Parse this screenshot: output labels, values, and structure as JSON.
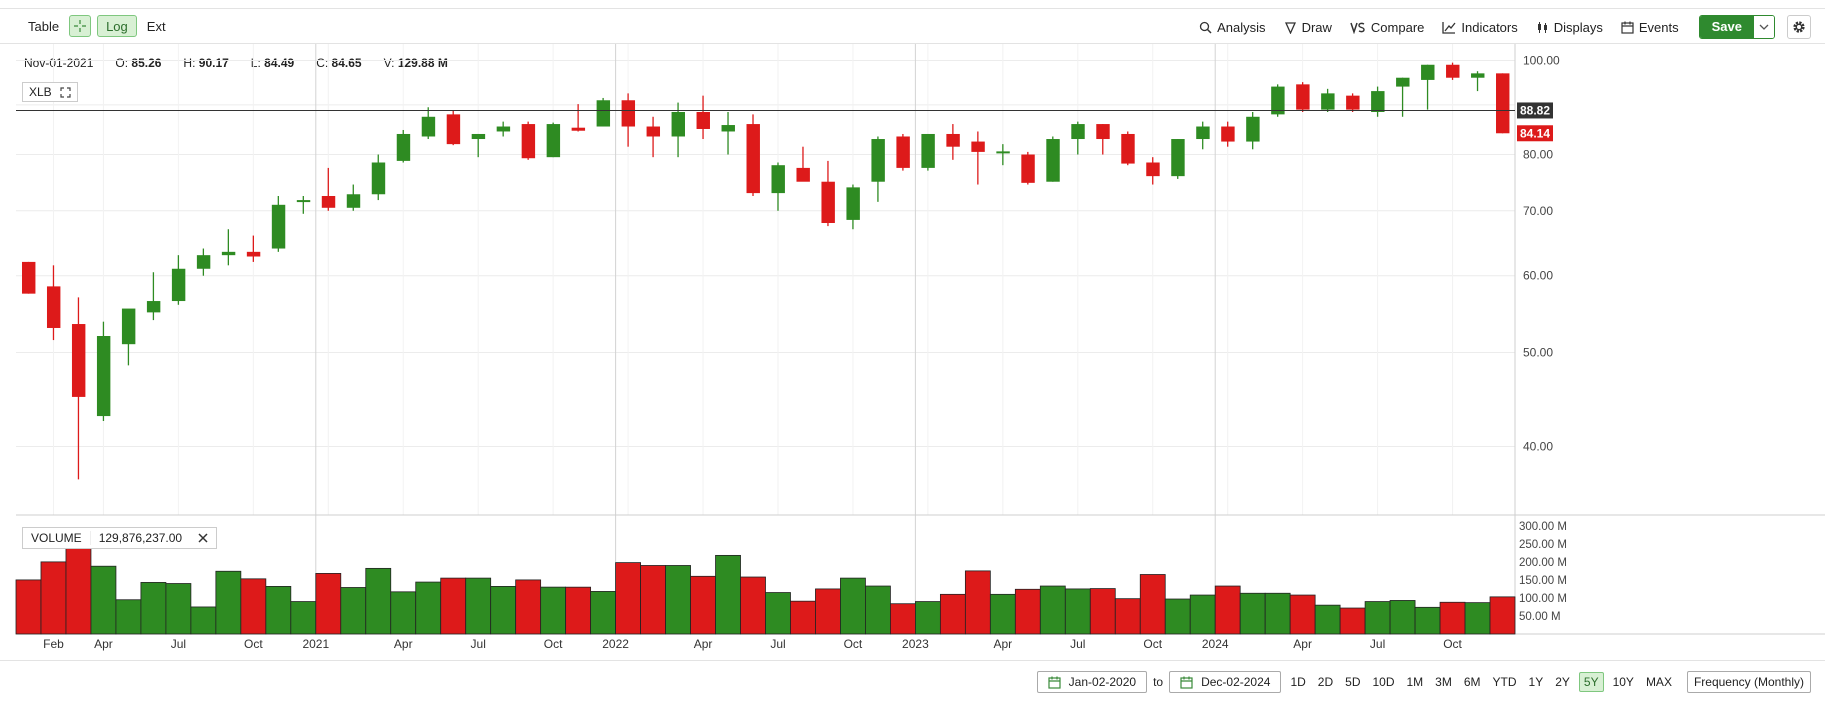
{
  "toolbar": {
    "table_label": "Table",
    "log_label": "Log",
    "ext_label": "Ext",
    "analysis_label": "Analysis",
    "draw_label": "Draw",
    "compare_label": "Compare",
    "indicators_label": "Indicators",
    "displays_label": "Displays",
    "events_label": "Events",
    "save_label": "Save"
  },
  "ohlc": {
    "date": "Nov-01-2021",
    "o_label": "O:",
    "o": "85.26",
    "h_label": "H:",
    "h": "90.17",
    "l_label": "L:",
    "l": "84.49",
    "c_label": "C:",
    "c": "84.65",
    "v_label": "V:",
    "v": "129.88 M"
  },
  "ticker": "XLB",
  "volume_box": {
    "label": "VOLUME",
    "value": "129,876,237.00"
  },
  "bottom": {
    "start_date": "Jan-02-2020",
    "to_label": "to",
    "end_date": "Dec-02-2024",
    "ranges": [
      "1D",
      "2D",
      "5D",
      "10D",
      "1M",
      "3M",
      "6M",
      "YTD",
      "1Y",
      "2Y",
      "5Y",
      "10Y",
      "MAX"
    ],
    "active_range": "5Y",
    "frequency": "Frequency (Monthly)"
  },
  "colors": {
    "up": "#2e8b22",
    "down": "#dd1a1a",
    "grid": "#ececec"
  },
  "chart_data": {
    "type": "candlestick",
    "scale": "log",
    "price_ylim": [
      34,
      104
    ],
    "price_ticks": [
      40,
      50,
      60,
      70,
      80,
      90,
      100
    ],
    "price_tick_labels": [
      "40.00",
      "50.00",
      "60.00",
      "70.00",
      "80.00",
      "",
      "100.00"
    ],
    "crosshair_price_label": "88.82",
    "crosshair_price": 88.82,
    "last_price_label": "84.14",
    "last_price": 84.14,
    "volume_ticks": [
      50,
      100,
      150,
      200,
      250,
      300
    ],
    "volume_tick_labels": [
      "50.00 M",
      "100.00 M",
      "150.00 M",
      "200.00 M",
      "250.00 M",
      "300.00 M"
    ],
    "volume_unit": "M",
    "x_labels": [
      {
        "i": 1,
        "label": "Feb"
      },
      {
        "i": 3,
        "label": "Apr"
      },
      {
        "i": 6,
        "label": "Jul"
      },
      {
        "i": 9,
        "label": "Oct"
      },
      {
        "i": 12,
        "label": "2021"
      },
      {
        "i": 15,
        "label": "Apr"
      },
      {
        "i": 18,
        "label": "Jul"
      },
      {
        "i": 21,
        "label": "Oct"
      },
      {
        "i": 24,
        "label": "2022"
      },
      {
        "i": 27,
        "label": "Apr"
      },
      {
        "i": 30,
        "label": "Jul"
      },
      {
        "i": 33,
        "label": "Oct"
      },
      {
        "i": 36,
        "label": "2023"
      },
      {
        "i": 39,
        "label": "Apr"
      },
      {
        "i": 42,
        "label": "Jul"
      },
      {
        "i": 45,
        "label": "Oct"
      },
      {
        "i": 48,
        "label": "2024"
      },
      {
        "i": 51,
        "label": "Apr"
      },
      {
        "i": 54,
        "label": "Jul"
      },
      {
        "i": 57,
        "label": "Oct"
      }
    ],
    "year_lines": [
      12,
      24,
      36,
      48
    ],
    "candles": [
      {
        "d": "2020-01",
        "o": 62.0,
        "h": 62.0,
        "l": 57.5,
        "c": 57.5,
        "v": 150
      },
      {
        "d": "2020-02",
        "o": 58.5,
        "h": 61.5,
        "l": 51.5,
        "c": 53.0,
        "v": 200
      },
      {
        "d": "2020-03",
        "o": 53.5,
        "h": 57.0,
        "l": 37.0,
        "c": 45.0,
        "v": 240
      },
      {
        "d": "2020-04",
        "o": 43.0,
        "h": 53.8,
        "l": 42.5,
        "c": 52.0,
        "v": 188
      },
      {
        "d": "2020-05",
        "o": 51.0,
        "h": 55.0,
        "l": 48.5,
        "c": 55.5,
        "v": 95
      },
      {
        "d": "2020-06",
        "o": 55.0,
        "h": 60.5,
        "l": 54.0,
        "c": 56.5,
        "v": 143
      },
      {
        "d": "2020-07",
        "o": 56.5,
        "h": 63.0,
        "l": 56.0,
        "c": 61.0,
        "v": 140
      },
      {
        "d": "2020-08",
        "o": 61.0,
        "h": 64.0,
        "l": 60.0,
        "c": 63.0,
        "v": 75
      },
      {
        "d": "2020-09",
        "o": 63.0,
        "h": 67.0,
        "l": 61.5,
        "c": 63.5,
        "v": 174
      },
      {
        "d": "2020-10",
        "o": 63.5,
        "h": 66.0,
        "l": 62.0,
        "c": 62.8,
        "v": 153
      },
      {
        "d": "2020-11",
        "o": 64.0,
        "h": 72.5,
        "l": 63.5,
        "c": 71.0,
        "v": 132
      },
      {
        "d": "2020-12",
        "o": 71.5,
        "h": 72.5,
        "l": 69.5,
        "c": 71.8,
        "v": 90
      },
      {
        "d": "2021-01",
        "o": 72.5,
        "h": 77.5,
        "l": 70.0,
        "c": 70.5,
        "v": 168
      },
      {
        "d": "2021-02",
        "o": 70.5,
        "h": 74.5,
        "l": 70.0,
        "c": 72.8,
        "v": 129
      },
      {
        "d": "2021-03",
        "o": 72.8,
        "h": 80.0,
        "l": 71.8,
        "c": 78.5,
        "v": 182
      },
      {
        "d": "2021-04",
        "o": 78.8,
        "h": 84.8,
        "l": 78.5,
        "c": 84.0,
        "v": 117
      },
      {
        "d": "2021-05",
        "o": 83.5,
        "h": 89.5,
        "l": 83.0,
        "c": 87.5,
        "v": 144
      },
      {
        "d": "2021-06",
        "o": 88.0,
        "h": 88.8,
        "l": 81.8,
        "c": 82.0,
        "v": 155
      },
      {
        "d": "2021-07",
        "o": 83.0,
        "h": 84.0,
        "l": 79.5,
        "c": 84.0,
        "v": 155
      },
      {
        "d": "2021-08",
        "o": 84.5,
        "h": 86.5,
        "l": 83.5,
        "c": 85.5,
        "v": 132
      },
      {
        "d": "2021-09",
        "o": 86.0,
        "h": 86.5,
        "l": 79.0,
        "c": 79.3,
        "v": 150
      },
      {
        "d": "2021-10",
        "o": 79.5,
        "h": 86.3,
        "l": 79.5,
        "c": 86.0,
        "v": 130
      },
      {
        "d": "2021-11",
        "o": 85.26,
        "h": 90.17,
        "l": 84.49,
        "c": 84.65,
        "v": 129.88
      },
      {
        "d": "2021-12",
        "o": 85.5,
        "h": 91.5,
        "l": 85.5,
        "c": 91.0,
        "v": 118
      },
      {
        "d": "2022-01",
        "o": 91.0,
        "h": 92.5,
        "l": 81.5,
        "c": 85.5,
        "v": 198
      },
      {
        "d": "2022-02",
        "o": 85.5,
        "h": 87.5,
        "l": 79.5,
        "c": 83.5,
        "v": 190
      },
      {
        "d": "2022-03",
        "o": 83.5,
        "h": 90.5,
        "l": 79.5,
        "c": 88.5,
        "v": 190
      },
      {
        "d": "2022-04",
        "o": 88.5,
        "h": 92.0,
        "l": 83.0,
        "c": 85.0,
        "v": 160
      },
      {
        "d": "2022-05",
        "o": 84.5,
        "h": 88.5,
        "l": 80.0,
        "c": 85.8,
        "v": 218
      },
      {
        "d": "2022-06",
        "o": 86.0,
        "h": 88.0,
        "l": 72.5,
        "c": 73.0,
        "v": 158
      },
      {
        "d": "2022-07",
        "o": 73.0,
        "h": 78.5,
        "l": 70.0,
        "c": 78.0,
        "v": 115
      },
      {
        "d": "2022-08",
        "o": 77.5,
        "h": 81.5,
        "l": 75.5,
        "c": 75.0,
        "v": 91
      },
      {
        "d": "2022-09",
        "o": 75.0,
        "h": 78.8,
        "l": 67.5,
        "c": 68.0,
        "v": 125
      },
      {
        "d": "2022-10",
        "o": 68.5,
        "h": 74.5,
        "l": 67.0,
        "c": 74.0,
        "v": 155
      },
      {
        "d": "2022-11",
        "o": 75.0,
        "h": 83.5,
        "l": 71.5,
        "c": 83.0,
        "v": 133
      },
      {
        "d": "2022-12",
        "o": 83.5,
        "h": 84.0,
        "l": 77.0,
        "c": 77.5,
        "v": 84
      },
      {
        "d": "2023-01",
        "o": 77.5,
        "h": 84.0,
        "l": 77.0,
        "c": 84.0,
        "v": 90
      },
      {
        "d": "2023-02",
        "o": 84.0,
        "h": 86.0,
        "l": 79.0,
        "c": 81.5,
        "v": 110
      },
      {
        "d": "2023-03",
        "o": 82.5,
        "h": 84.5,
        "l": 74.5,
        "c": 80.5,
        "v": 175
      },
      {
        "d": "2023-04",
        "o": 80.5,
        "h": 82.0,
        "l": 78.0,
        "c": 80.6,
        "v": 110
      },
      {
        "d": "2023-05",
        "o": 80.0,
        "h": 80.5,
        "l": 74.5,
        "c": 74.8,
        "v": 124
      },
      {
        "d": "2023-06",
        "o": 75.0,
        "h": 83.5,
        "l": 75.0,
        "c": 83.0,
        "v": 133
      },
      {
        "d": "2023-07",
        "o": 83.0,
        "h": 86.5,
        "l": 80.0,
        "c": 86.0,
        "v": 125
      },
      {
        "d": "2023-08",
        "o": 86.0,
        "h": 86.0,
        "l": 80.0,
        "c": 83.0,
        "v": 126
      },
      {
        "d": "2023-09",
        "o": 84.0,
        "h": 84.5,
        "l": 78.0,
        "c": 78.3,
        "v": 98
      },
      {
        "d": "2023-10",
        "o": 78.5,
        "h": 79.5,
        "l": 74.5,
        "c": 76.0,
        "v": 165
      },
      {
        "d": "2023-11",
        "o": 76.0,
        "h": 83.0,
        "l": 75.5,
        "c": 83.0,
        "v": 97
      },
      {
        "d": "2023-12",
        "o": 83.0,
        "h": 86.5,
        "l": 81.0,
        "c": 85.5,
        "v": 108
      },
      {
        "d": "2024-01",
        "o": 85.5,
        "h": 86.5,
        "l": 81.5,
        "c": 82.5,
        "v": 133
      },
      {
        "d": "2024-02",
        "o": 82.5,
        "h": 88.5,
        "l": 81.0,
        "c": 87.5,
        "v": 113
      },
      {
        "d": "2024-03",
        "o": 88.0,
        "h": 94.5,
        "l": 87.5,
        "c": 94.0,
        "v": 113
      },
      {
        "d": "2024-04",
        "o": 94.5,
        "h": 95.0,
        "l": 88.5,
        "c": 89.0,
        "v": 108
      },
      {
        "d": "2024-05",
        "o": 89.0,
        "h": 93.5,
        "l": 88.5,
        "c": 92.5,
        "v": 80
      },
      {
        "d": "2024-06",
        "o": 92.0,
        "h": 92.5,
        "l": 88.5,
        "c": 89.0,
        "v": 72
      },
      {
        "d": "2024-07",
        "o": 88.5,
        "h": 94.0,
        "l": 87.5,
        "c": 93.0,
        "v": 90
      },
      {
        "d": "2024-08",
        "o": 94.0,
        "h": 96.0,
        "l": 87.5,
        "c": 96.0,
        "v": 93
      },
      {
        "d": "2024-09",
        "o": 95.5,
        "h": 99.0,
        "l": 89.0,
        "c": 99.0,
        "v": 74
      },
      {
        "d": "2024-10",
        "o": 99.0,
        "h": 99.5,
        "l": 95.5,
        "c": 96.0,
        "v": 88
      },
      {
        "d": "2024-11",
        "o": 96.0,
        "h": 97.5,
        "l": 93.0,
        "c": 97.0,
        "v": 87
      },
      {
        "d": "2024-12",
        "o": 97.0,
        "h": 97.0,
        "l": 84.14,
        "c": 84.14,
        "v": 103
      }
    ]
  }
}
